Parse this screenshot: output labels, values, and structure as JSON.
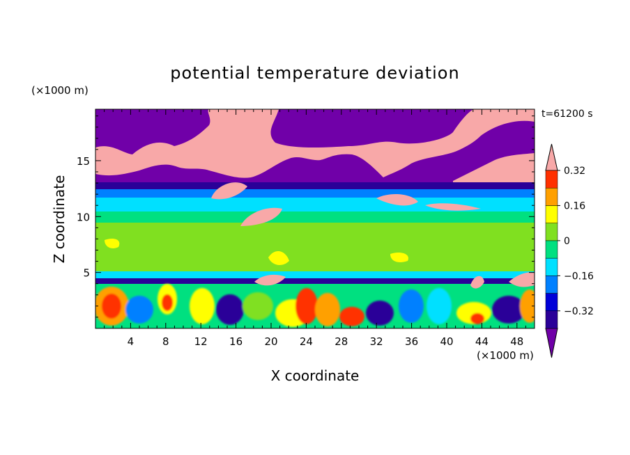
{
  "chart_data": {
    "type": "heatmap",
    "title": "potential temperature deviation",
    "time_label": "t=61200 s",
    "xlabel": "X coordinate",
    "ylabel": "Z coordinate",
    "x_unit": "(×1000 m)",
    "y_unit": "(×1000 m)",
    "xlim": [
      0,
      50
    ],
    "ylim": [
      0,
      19.6
    ],
    "x_ticks": [
      4,
      8,
      12,
      16,
      20,
      24,
      28,
      32,
      36,
      40,
      44,
      48
    ],
    "y_ticks": [
      5,
      10,
      15
    ],
    "colorbar": {
      "levels": [
        -0.4,
        -0.32,
        -0.24,
        -0.16,
        -0.08,
        0,
        0.08,
        0.16,
        0.24,
        0.32,
        0.4
      ],
      "labeled_levels": [
        0.32,
        0.16,
        0,
        -0.16,
        -0.32
      ],
      "colors": [
        "#7000a8",
        "#2a0098",
        "#0000d8",
        "#0080ff",
        "#00e0ff",
        "#00e080",
        "#80e020",
        "#ffff00",
        "#ffa000",
        "#ff3000",
        "#f8a8a8"
      ]
    },
    "regions": [
      {
        "z": [
          13.4,
          19.6
        ],
        "value": "< -0.4",
        "color": "#7000a8"
      },
      {
        "z": [
          13.4,
          18.5
        ],
        "value": "> 0.4",
        "color": "#f8a8a8",
        "note": "patches"
      },
      {
        "z": [
          12.8,
          13.4
        ],
        "value": "-0.32 to -0.24",
        "color": "#2a0098"
      },
      {
        "z": [
          10.6,
          12.8
        ],
        "value": "-0.08 to 0",
        "color": "#00e0ff"
      },
      {
        "z": [
          5.4,
          10.6
        ],
        "value": "0 to 0.16",
        "color": "#80e020"
      },
      {
        "z": [
          4.4,
          5.4
        ],
        "value": "-0.08 to 0",
        "color": "#00e0ff"
      },
      {
        "z": [
          0,
          4.4
        ],
        "value": "mixed -0.4 to 0.4",
        "color": "mixed"
      }
    ]
  }
}
